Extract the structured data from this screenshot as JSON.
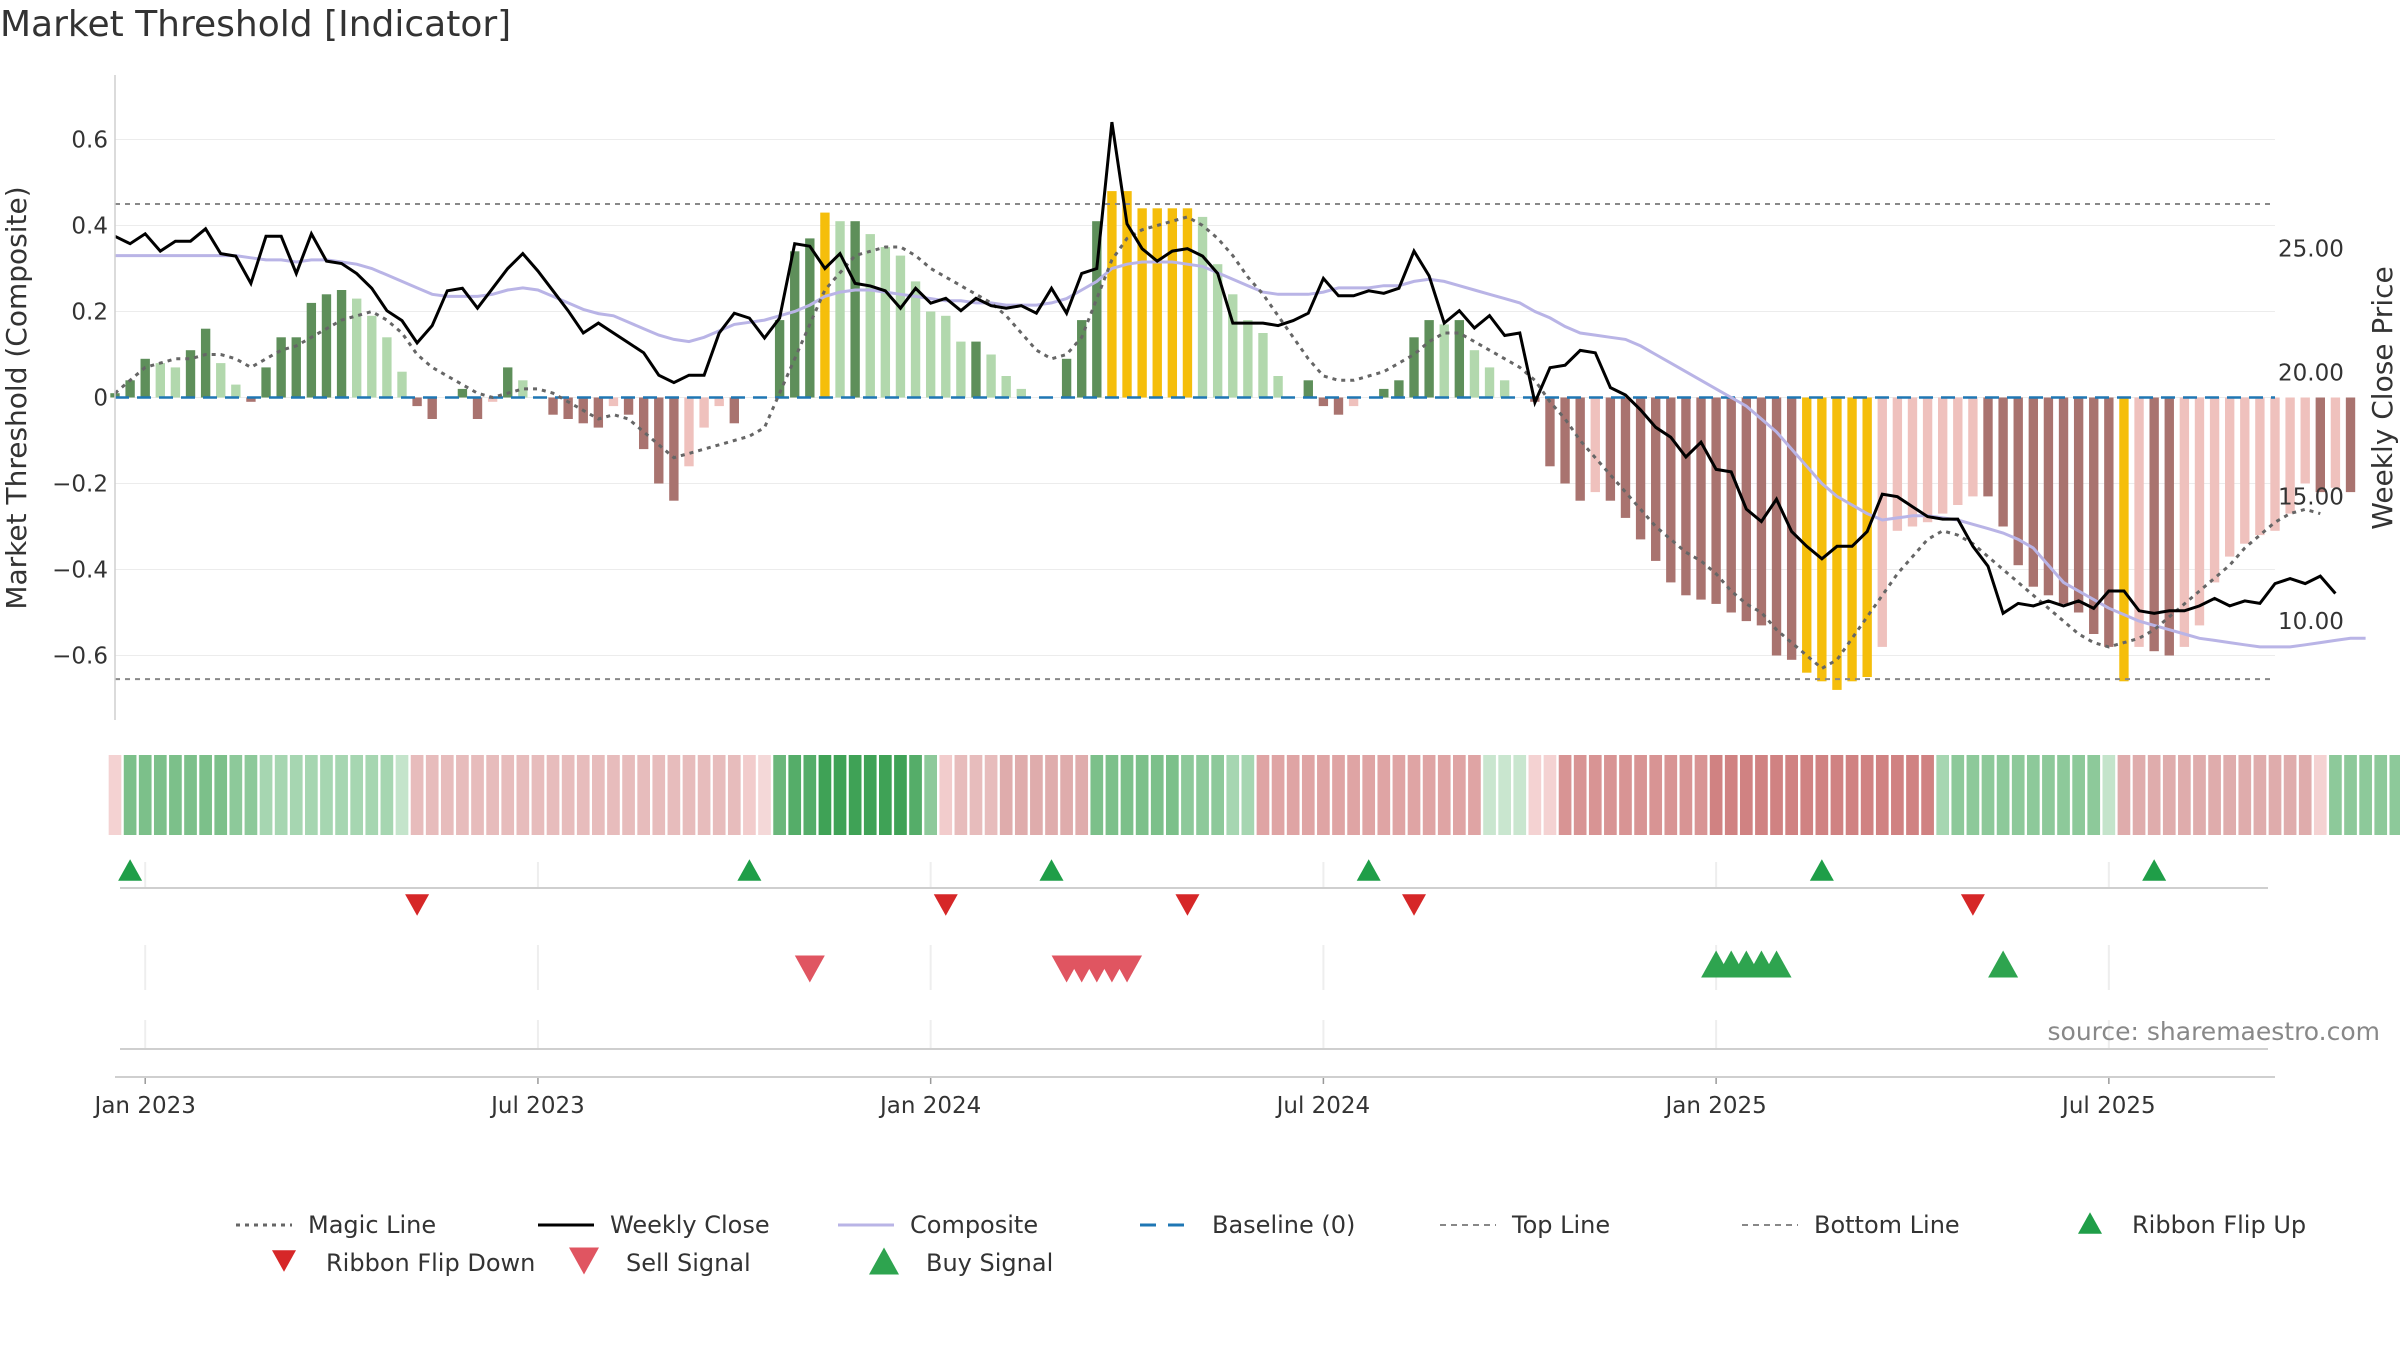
{
  "title": "Market Threshold [Indicator]",
  "source": "source: sharemaestro.com",
  "chart_data": {
    "type": "bar",
    "title": "Market Threshold [Indicator]",
    "ylabel_left": "Market Threshold (Composite)",
    "ylabel_right": "Weekly Close Price",
    "left_axis": {
      "ylim": [
        -0.75,
        0.75
      ],
      "ticks": [
        0.6,
        0.4,
        0.2,
        0,
        -0.2,
        -0.4,
        -0.6
      ],
      "tick_labels": [
        "0.6",
        "0.4",
        "0.2",
        "0",
        "−0.2",
        "−0.4",
        "−0.6"
      ]
    },
    "right_axis": {
      "ylim": [
        6.0,
        32.0
      ],
      "ticks": [
        25,
        20,
        15,
        10
      ],
      "tick_labels": [
        "25.00",
        "20.00",
        "15.00",
        "10.00"
      ]
    },
    "x_ticks": [
      {
        "week": 2,
        "label": "Jan 2023"
      },
      {
        "week": 28,
        "label": "Jul 2023"
      },
      {
        "week": 54,
        "label": "Jan 2024"
      },
      {
        "week": 80,
        "label": "Jul 2024"
      },
      {
        "week": 106,
        "label": "Jan 2025"
      },
      {
        "week": 132,
        "label": "Jul 2025"
      }
    ],
    "x_range": [
      0,
      143
    ],
    "top_line": 0.45,
    "bottom_line": -0.655,
    "baseline": 0,
    "composite_histogram": [
      0.01,
      0.04,
      0.09,
      0.08,
      0.07,
      0.11,
      0.16,
      0.08,
      0.03,
      -0.01,
      0.07,
      0.14,
      0.14,
      0.22,
      0.24,
      0.25,
      0.23,
      0.19,
      0.14,
      0.06,
      -0.02,
      -0.05,
      0.0,
      0.02,
      -0.05,
      -0.01,
      0.07,
      0.04,
      0.0,
      -0.04,
      -0.05,
      -0.06,
      -0.07,
      -0.02,
      -0.04,
      -0.12,
      -0.2,
      -0.24,
      -0.16,
      -0.07,
      -0.02,
      -0.06,
      0.0,
      0.0,
      0.18,
      0.34,
      0.37,
      0.43,
      0.41,
      0.41,
      0.38,
      0.35,
      0.33,
      0.27,
      0.2,
      0.19,
      0.13,
      0.13,
      0.1,
      0.05,
      0.02,
      0.0,
      0.0,
      0.09,
      0.18,
      0.41,
      0.48,
      0.48,
      0.44,
      0.44,
      0.44,
      0.44,
      0.42,
      0.31,
      0.24,
      0.18,
      0.15,
      0.05,
      0.0,
      0.04,
      -0.02,
      -0.04,
      -0.02,
      0.0,
      0.02,
      0.04,
      0.14,
      0.18,
      0.17,
      0.18,
      0.11,
      0.07,
      0.04,
      0.0,
      -0.01,
      -0.16,
      -0.2,
      -0.24,
      -0.22,
      -0.24,
      -0.28,
      -0.33,
      -0.38,
      -0.43,
      -0.46,
      -0.47,
      -0.48,
      -0.5,
      -0.52,
      -0.53,
      -0.6,
      -0.61,
      -0.64,
      -0.66,
      -0.68,
      -0.66,
      -0.65,
      -0.58,
      -0.31,
      -0.3,
      -0.29,
      -0.27,
      -0.25,
      -0.23,
      -0.23,
      -0.3,
      -0.39,
      -0.44,
      -0.46,
      -0.48,
      -0.5,
      -0.55,
      -0.58,
      -0.66,
      -0.58,
      -0.59,
      -0.6,
      -0.58,
      -0.53,
      -0.43,
      -0.37,
      -0.34,
      -0.32,
      -0.31,
      -0.27,
      -0.2,
      -0.22,
      -0.21,
      -0.22
    ],
    "weekly_close": [
      25.5,
      25.2,
      25.6,
      24.9,
      25.3,
      25.3,
      25.8,
      24.8,
      24.7,
      23.6,
      25.5,
      25.5,
      24.0,
      25.6,
      24.5,
      24.4,
      24.0,
      23.4,
      22.5,
      22.1,
      21.2,
      21.9,
      23.3,
      23.4,
      22.6,
      23.4,
      24.2,
      24.8,
      24.1,
      23.3,
      22.5,
      21.6,
      22.0,
      21.6,
      21.2,
      20.8,
      19.9,
      19.6,
      19.9,
      19.9,
      21.6,
      22.4,
      22.2,
      21.4,
      22.2,
      25.2,
      25.1,
      24.2,
      24.8,
      23.6,
      23.5,
      23.3,
      22.6,
      23.4,
      22.8,
      23.0,
      22.5,
      23.0,
      22.7,
      22.6,
      22.7,
      22.4,
      23.4,
      22.4,
      24.0,
      24.2,
      30.1,
      26.0,
      25.0,
      24.5,
      24.9,
      25.0,
      24.7,
      24.0,
      22.0,
      22.0,
      22.0,
      21.9,
      22.1,
      22.4,
      23.8,
      23.1,
      23.1,
      23.3,
      23.2,
      23.4,
      24.9,
      23.9,
      22.0,
      22.5,
      21.8,
      22.3,
      21.5,
      21.6,
      18.8,
      20.2,
      20.3,
      20.9,
      20.8,
      19.4,
      19.1,
      18.5,
      17.8,
      17.4,
      16.6,
      17.2,
      16.1,
      16.0,
      14.5,
      14.0,
      14.9,
      13.6,
      13.0,
      12.5,
      13.0,
      13.0,
      13.6,
      15.1,
      15.0,
      14.6,
      14.2,
      14.1,
      14.1,
      13.0,
      12.2,
      10.3,
      10.7,
      10.6,
      10.8,
      10.6,
      10.8,
      10.5,
      11.2,
      11.2,
      10.4,
      10.3,
      10.4,
      10.4,
      10.6,
      10.9,
      10.6,
      10.8,
      10.7,
      11.5,
      11.7,
      11.5,
      11.8,
      11.1
    ],
    "composite_line": [
      0.33,
      0.33,
      0.33,
      0.33,
      0.33,
      0.33,
      0.33,
      0.33,
      0.33,
      0.325,
      0.32,
      0.32,
      0.315,
      0.32,
      0.32,
      0.315,
      0.31,
      0.3,
      0.285,
      0.27,
      0.255,
      0.24,
      0.235,
      0.235,
      0.235,
      0.24,
      0.25,
      0.255,
      0.25,
      0.235,
      0.22,
      0.205,
      0.195,
      0.19,
      0.175,
      0.16,
      0.145,
      0.135,
      0.13,
      0.14,
      0.155,
      0.17,
      0.175,
      0.18,
      0.19,
      0.2,
      0.215,
      0.235,
      0.245,
      0.25,
      0.25,
      0.245,
      0.24,
      0.235,
      0.23,
      0.225,
      0.225,
      0.22,
      0.22,
      0.215,
      0.215,
      0.215,
      0.22,
      0.23,
      0.25,
      0.27,
      0.3,
      0.31,
      0.315,
      0.315,
      0.315,
      0.31,
      0.305,
      0.29,
      0.275,
      0.26,
      0.245,
      0.24,
      0.24,
      0.24,
      0.245,
      0.255,
      0.255,
      0.255,
      0.26,
      0.26,
      0.27,
      0.275,
      0.27,
      0.26,
      0.25,
      0.24,
      0.23,
      0.22,
      0.2,
      0.185,
      0.165,
      0.15,
      0.145,
      0.14,
      0.135,
      0.12,
      0.1,
      0.08,
      0.06,
      0.04,
      0.02,
      0.0,
      -0.02,
      -0.05,
      -0.08,
      -0.12,
      -0.16,
      -0.2,
      -0.23,
      -0.25,
      -0.27,
      -0.285,
      -0.28,
      -0.275,
      -0.275,
      -0.28,
      -0.285,
      -0.295,
      -0.305,
      -0.315,
      -0.33,
      -0.35,
      -0.39,
      -0.43,
      -0.45,
      -0.47,
      -0.49,
      -0.505,
      -0.52,
      -0.53,
      -0.54,
      -0.55,
      -0.56,
      -0.565,
      -0.57,
      -0.575,
      -0.58,
      -0.58,
      -0.58,
      -0.575,
      -0.57,
      -0.565,
      -0.56,
      -0.56
    ],
    "magic_line": [
      0.01,
      0.04,
      0.07,
      0.08,
      0.09,
      0.09,
      0.1,
      0.1,
      0.09,
      0.07,
      0.09,
      0.11,
      0.12,
      0.14,
      0.16,
      0.18,
      0.19,
      0.2,
      0.18,
      0.15,
      0.1,
      0.07,
      0.05,
      0.03,
      0.01,
      0.0,
      0.01,
      0.02,
      0.02,
      0.01,
      -0.01,
      -0.03,
      -0.05,
      -0.04,
      -0.05,
      -0.08,
      -0.11,
      -0.14,
      -0.13,
      -0.12,
      -0.11,
      -0.1,
      -0.09,
      -0.07,
      0.01,
      0.09,
      0.17,
      0.25,
      0.29,
      0.33,
      0.34,
      0.35,
      0.35,
      0.33,
      0.3,
      0.28,
      0.26,
      0.24,
      0.22,
      0.19,
      0.15,
      0.11,
      0.09,
      0.1,
      0.14,
      0.23,
      0.32,
      0.37,
      0.39,
      0.4,
      0.41,
      0.42,
      0.4,
      0.37,
      0.33,
      0.28,
      0.24,
      0.19,
      0.14,
      0.09,
      0.05,
      0.04,
      0.04,
      0.05,
      0.06,
      0.08,
      0.1,
      0.13,
      0.15,
      0.15,
      0.13,
      0.11,
      0.09,
      0.07,
      0.04,
      -0.01,
      -0.05,
      -0.1,
      -0.14,
      -0.18,
      -0.22,
      -0.26,
      -0.3,
      -0.33,
      -0.36,
      -0.38,
      -0.41,
      -0.45,
      -0.48,
      -0.5,
      -0.54,
      -0.57,
      -0.6,
      -0.63,
      -0.61,
      -0.56,
      -0.51,
      -0.46,
      -0.41,
      -0.37,
      -0.33,
      -0.31,
      -0.32,
      -0.34,
      -0.37,
      -0.4,
      -0.43,
      -0.46,
      -0.49,
      -0.52,
      -0.55,
      -0.57,
      -0.58,
      -0.57,
      -0.56,
      -0.54,
      -0.51,
      -0.48,
      -0.45,
      -0.42,
      -0.39,
      -0.35,
      -0.32,
      -0.29,
      -0.27,
      -0.26,
      -0.27
    ],
    "ribbon_colors": [
      "#f4d2d2",
      "#7cc08a",
      "#7cc08a",
      "#7cc08a",
      "#7cc08a",
      "#7cc08a",
      "#7cc08a",
      "#7cc08a",
      "#8dc99a",
      "#8dc99a",
      "#a6d6b1",
      "#a6d6b1",
      "#a6d6b1",
      "#a6d6b1",
      "#a6d6b1",
      "#a6d6b1",
      "#a6d6b1",
      "#a6d6b1",
      "#a6d6b1",
      "#c4e4cb",
      "#e7bcbc",
      "#e7bcbc",
      "#e7bcbc",
      "#e7bcbc",
      "#e7bcbc",
      "#e7bcbc",
      "#e7bcbc",
      "#e7bcbc",
      "#e7bcbc",
      "#e7bcbc",
      "#e7bcbc",
      "#e7bcbc",
      "#e7bcbc",
      "#e7bcbc",
      "#e7bcbc",
      "#e7bcbc",
      "#e7bcbc",
      "#e7bcbc",
      "#e7bcbc",
      "#e7bcbc",
      "#e7bcbc",
      "#e7bcbc",
      "#f2cccc",
      "#f4d8d8",
      "#6ab77b",
      "#55ad69",
      "#55ad69",
      "#3fa256",
      "#3fa256",
      "#3fa256",
      "#3fa256",
      "#3fa256",
      "#3fa256",
      "#55ad69",
      "#8dc99a",
      "#f2cccc",
      "#e7bcbc",
      "#e7bcbc",
      "#e7bcbc",
      "#dfacac",
      "#dfacac",
      "#dfacac",
      "#dfacac",
      "#dfacac",
      "#dfacac",
      "#7cc08a",
      "#7cc08a",
      "#7cc08a",
      "#7cc08a",
      "#7cc08a",
      "#7cc08a",
      "#8dc99a",
      "#8dc99a",
      "#8dc99a",
      "#a6d6b1",
      "#a6d6b1",
      "#dfa4a4",
      "#dfa4a4",
      "#dfa4a4",
      "#dfa4a4",
      "#dfa4a4",
      "#dfa4a4",
      "#dfa4a4",
      "#dfa4a4",
      "#dfa4a4",
      "#dfa4a4",
      "#dfa4a4",
      "#dfa4a4",
      "#dfa4a4",
      "#dfa4a4",
      "#dfa4a4",
      "#c9e6cf",
      "#c9e6cf",
      "#c9e6cf",
      "#f4d2d2",
      "#f4d2d2",
      "#d89494",
      "#d89494",
      "#d89494",
      "#d89494",
      "#d89494",
      "#d89494",
      "#d89494",
      "#d89494",
      "#d89494",
      "#d89494",
      "#d08282",
      "#d08282",
      "#d08282",
      "#d08282",
      "#d08282",
      "#d08282",
      "#d08282",
      "#d08282",
      "#d08282",
      "#d08282",
      "#d08282",
      "#d08282",
      "#d08282",
      "#d08282",
      "#d08282",
      "#a6d6b1",
      "#8dc99a",
      "#8dc99a",
      "#8dc99a",
      "#8dc99a",
      "#8dc99a",
      "#8dc99a",
      "#8dc99a",
      "#8dc99a",
      "#8dc99a",
      "#8dc99a",
      "#c4e4cb",
      "#dfacac",
      "#dfacac",
      "#dfacac",
      "#dfacac",
      "#dfacac",
      "#dfacac",
      "#dfacac",
      "#dfacac",
      "#dfacac",
      "#dfacac",
      "#dfacac",
      "#dfacac",
      "#dfacac",
      "#f4d2d2",
      "#8dc99a",
      "#8dc99a",
      "#8dc99a",
      "#8dc99a",
      "#8dc99a",
      "#8dc99a",
      "#8dc99a",
      "#8dc99a",
      "#8dc99a"
    ],
    "ribbon_flip_up": [
      1,
      42,
      62,
      83,
      113,
      135
    ],
    "ribbon_flip_down": [
      20,
      55,
      71,
      86,
      123
    ],
    "sell_signals": [
      46,
      63,
      64,
      65,
      66,
      67
    ],
    "buy_signals": [
      106,
      107,
      108,
      109,
      110,
      125
    ],
    "legend": [
      {
        "label": "Magic Line",
        "style": "dotted",
        "color": "#666666"
      },
      {
        "label": "Weekly Close",
        "style": "solid",
        "color": "#000000"
      },
      {
        "label": "Composite",
        "style": "solid",
        "color": "#b9b4e6"
      },
      {
        "label": "Baseline (0)",
        "style": "dashed",
        "color": "#1f77b4"
      },
      {
        "label": "Top Line",
        "style": "dashed-thin",
        "color": "#888888"
      },
      {
        "label": "Bottom Line",
        "style": "dashed-thin",
        "color": "#888888"
      },
      {
        "label": "Ribbon Flip Up",
        "style": "triangle-up",
        "color": "#1f9e48"
      },
      {
        "label": "Ribbon Flip Down",
        "style": "triangle-down",
        "color": "#d62728"
      },
      {
        "label": "Sell Signal",
        "style": "triangle-down-lg",
        "color": "#e05561"
      },
      {
        "label": "Buy Signal",
        "style": "triangle-up-lg",
        "color": "#2ea44f"
      }
    ],
    "colors": {
      "dark_green": "#5e8f5a",
      "light_green": "#b2d8ad",
      "dark_red": "#a9736f",
      "light_red": "#efc1bd",
      "gold": "#f5be0b"
    }
  }
}
